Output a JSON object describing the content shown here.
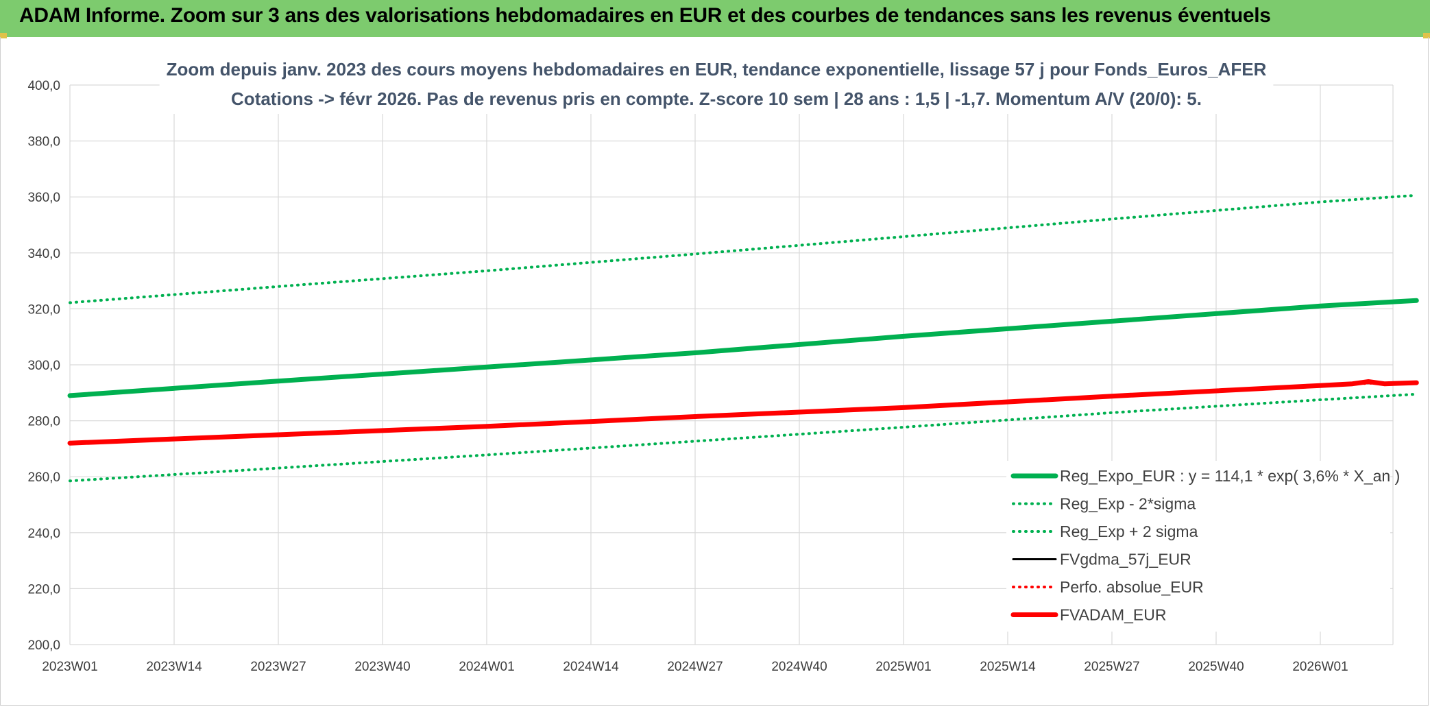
{
  "banner": {
    "title": "ADAM Informe. Zoom sur 3 ans des valorisations hebdomadaires en EUR et des courbes de tendances sans les revenus éventuels"
  },
  "chart_data": {
    "type": "line",
    "title": "Zoom depuis janv. 2023 des cours moyens hebdomadaires en EUR, tendance exponentielle, lissage 57 j pour Fonds_Euros_AFER",
    "subtitle": "Cotations -> févr 2026. Pas de revenus pris en compte. Z-score 10 sem | 28 ans : 1,5 | -1,7. Momentum A/V (20/0): 5.",
    "ylim": [
      200,
      400
    ],
    "y_ticks": [
      "200,0",
      "220,0",
      "240,0",
      "260,0",
      "280,0",
      "300,0",
      "320,0",
      "340,0",
      "360,0",
      "380,0",
      "400,0"
    ],
    "x_ticks": [
      "2023W01",
      "2023W14",
      "2023W27",
      "2023W40",
      "2024W01",
      "2024W14",
      "2024W27",
      "2024W40",
      "2025W01",
      "2025W14",
      "2025W27",
      "2025W40",
      "2026W01"
    ],
    "x_range_weeks": [
      0,
      168
    ],
    "grid": true,
    "legend_position": "bottom-right",
    "colors": {
      "green": "#00b050",
      "red": "#ff0000",
      "black": "#000000",
      "grid": "#d9d9d9"
    },
    "series": [
      {
        "name": "Reg_Expo_EUR : y = 114,1 * exp( 3,6% *  X_an )",
        "style": "solid-thick",
        "color": "#00b050",
        "x_weeks": [
          0,
          26,
          52,
          78,
          104,
          130,
          156,
          168
        ],
        "values": [
          289.0,
          294.2,
          299.2,
          304.3,
          310.2,
          315.6,
          321.0,
          323.0
        ]
      },
      {
        "name": "Reg_Exp - 2*sigma",
        "style": "dotted",
        "color": "#00b050",
        "x_weeks": [
          0,
          26,
          52,
          78,
          104,
          130,
          156,
          168
        ],
        "values": [
          258.5,
          263.1,
          267.8,
          272.7,
          277.7,
          282.9,
          287.5,
          289.5
        ]
      },
      {
        "name": "Reg_Exp + 2 sigma",
        "style": "dotted",
        "color": "#00b050",
        "x_weeks": [
          0,
          26,
          52,
          78,
          104,
          130,
          156,
          168
        ],
        "values": [
          322.2,
          328.0,
          333.6,
          339.6,
          345.8,
          352.1,
          358.2,
          360.6
        ]
      },
      {
        "name": "FVgdma_57j_EUR",
        "style": "solid",
        "color": "#000000",
        "x_weeks": [
          0,
          26,
          52,
          78,
          104,
          130,
          156,
          162,
          168
        ],
        "values": [
          272.0,
          275.0,
          278.0,
          281.5,
          284.7,
          288.8,
          292.6,
          293.4,
          293.6
        ]
      },
      {
        "name": "Perfo. absolue_EUR",
        "style": "dotted",
        "color": "#ff0000",
        "x_weeks": [
          0,
          26,
          52,
          78,
          104,
          130,
          156,
          162,
          168
        ],
        "values": [
          272.0,
          275.0,
          278.0,
          281.5,
          284.7,
          288.8,
          292.6,
          293.4,
          293.6
        ]
      },
      {
        "name": "FVADAM_EUR",
        "style": "solid-thick",
        "color": "#ff0000",
        "x_weeks": [
          0,
          26,
          52,
          78,
          104,
          130,
          156,
          160,
          162,
          164,
          168
        ],
        "values": [
          272.0,
          275.0,
          278.0,
          281.5,
          284.7,
          288.8,
          292.6,
          293.2,
          294.0,
          293.2,
          293.6
        ]
      }
    ]
  }
}
